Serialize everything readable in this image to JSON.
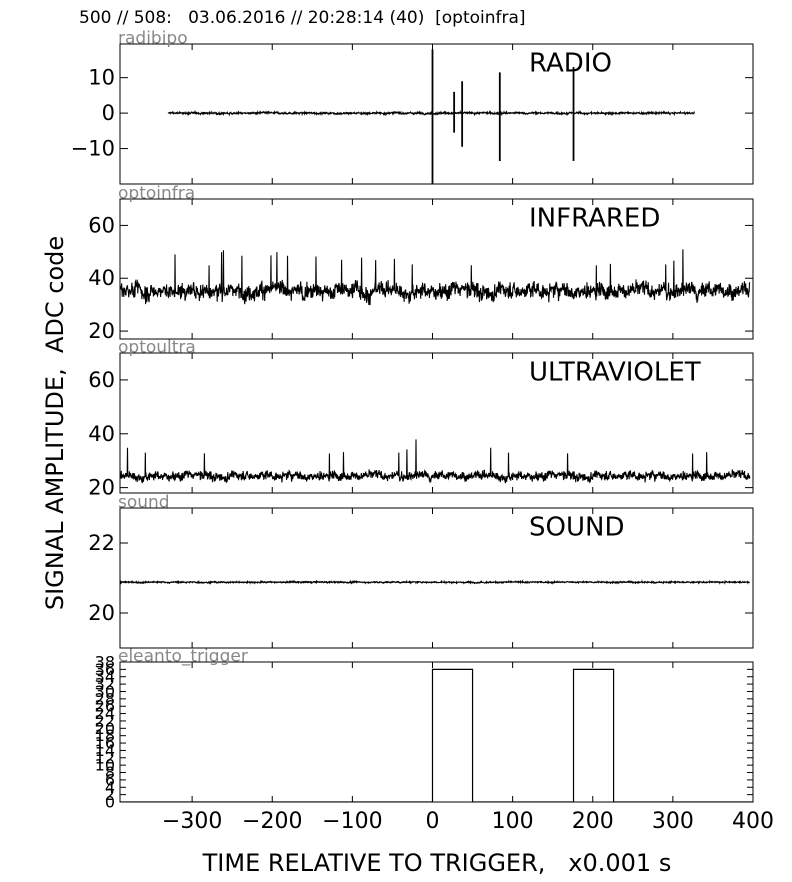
{
  "header": {
    "title": "500 // 508:   03.06.2016 // 20:28:14 (40)  [optoinfra]"
  },
  "chart_data": {
    "type": "line",
    "ylabel": "SIGNAL AMPLITUDE,  ADC code",
    "xlabel": "TIME RELATIVE TO TRIGGER,   x0.001 s",
    "xlim": [
      -390,
      400
    ],
    "xticks": [
      -300,
      -200,
      -100,
      0,
      100,
      200,
      300,
      400
    ],
    "xtick_labels": [
      "−300",
      "−200",
      "−100",
      "0",
      "100",
      "200",
      "300",
      "400"
    ],
    "panels": [
      {
        "id": "radio",
        "channel": "radibipo",
        "title": "RADIO",
        "ylim": [
          -20,
          19.5
        ],
        "yticks": [
          10,
          0,
          -10
        ],
        "ytick_labels": [
          "10",
          "0",
          "−10"
        ],
        "signal": {
          "x_start": -330,
          "x_end": 327,
          "baseline": 0,
          "noise": 0.4
        },
        "spikes": [
          {
            "x": 0,
            "top": 18,
            "bottom": -20
          },
          {
            "x": 27,
            "top": 6,
            "bottom": -5.5
          },
          {
            "x": 37,
            "top": 9,
            "bottom": -9.5
          },
          {
            "x": 84,
            "top": 11.5,
            "bottom": -13.5
          },
          {
            "x": 176,
            "top": 13,
            "bottom": -13.5
          }
        ]
      },
      {
        "id": "infrared",
        "channel": "optoinfra",
        "title": "INFRARED",
        "ylim": [
          17,
          70
        ],
        "yticks": [
          60,
          40,
          20
        ],
        "ytick_labels": [
          "60",
          "40",
          "20"
        ],
        "signal": {
          "x_start": -390,
          "x_end": 396,
          "baseline": 35.5,
          "noise": 4.5,
          "max": 51,
          "min": 26
        }
      },
      {
        "id": "ultraviolet",
        "channel": "optoultra",
        "title": "ULTRAVIOLET",
        "ylim": [
          18,
          70
        ],
        "yticks": [
          60,
          40,
          20
        ],
        "ytick_labels": [
          "60",
          "40",
          "20"
        ],
        "signal": {
          "x_start": -390,
          "x_end": 396,
          "baseline": 24.5,
          "noise": 2.5,
          "max": 38,
          "min": 21
        }
      },
      {
        "id": "sound",
        "channel": "sound",
        "title": "SOUND",
        "ylim": [
          19,
          23
        ],
        "yticks": [
          22,
          20
        ],
        "ytick_labels": [
          "22",
          "20"
        ],
        "signal": {
          "x_start": -390,
          "x_end": 396,
          "baseline": 20.88,
          "noise": 0.03
        }
      },
      {
        "id": "trigger",
        "channel": "eleanto_trigger",
        "title": "",
        "ylim": [
          0,
          38
        ],
        "yticks": [
          0,
          2,
          4,
          6,
          8,
          10,
          12,
          14,
          16,
          18,
          20,
          22,
          24,
          26,
          28,
          30,
          32,
          34,
          36,
          38
        ],
        "ytick_labels": [
          "0",
          "2",
          "4",
          "6",
          "8",
          "10",
          "12",
          "14",
          "16",
          "18",
          "20",
          "22",
          "24",
          "26",
          "28",
          "30",
          "32",
          "34",
          "36",
          "38"
        ],
        "pulses": [
          {
            "start": 0,
            "end": 50,
            "high": 36
          },
          {
            "start": 176,
            "end": 226,
            "high": 36
          }
        ],
        "baseline": 0
      }
    ]
  }
}
